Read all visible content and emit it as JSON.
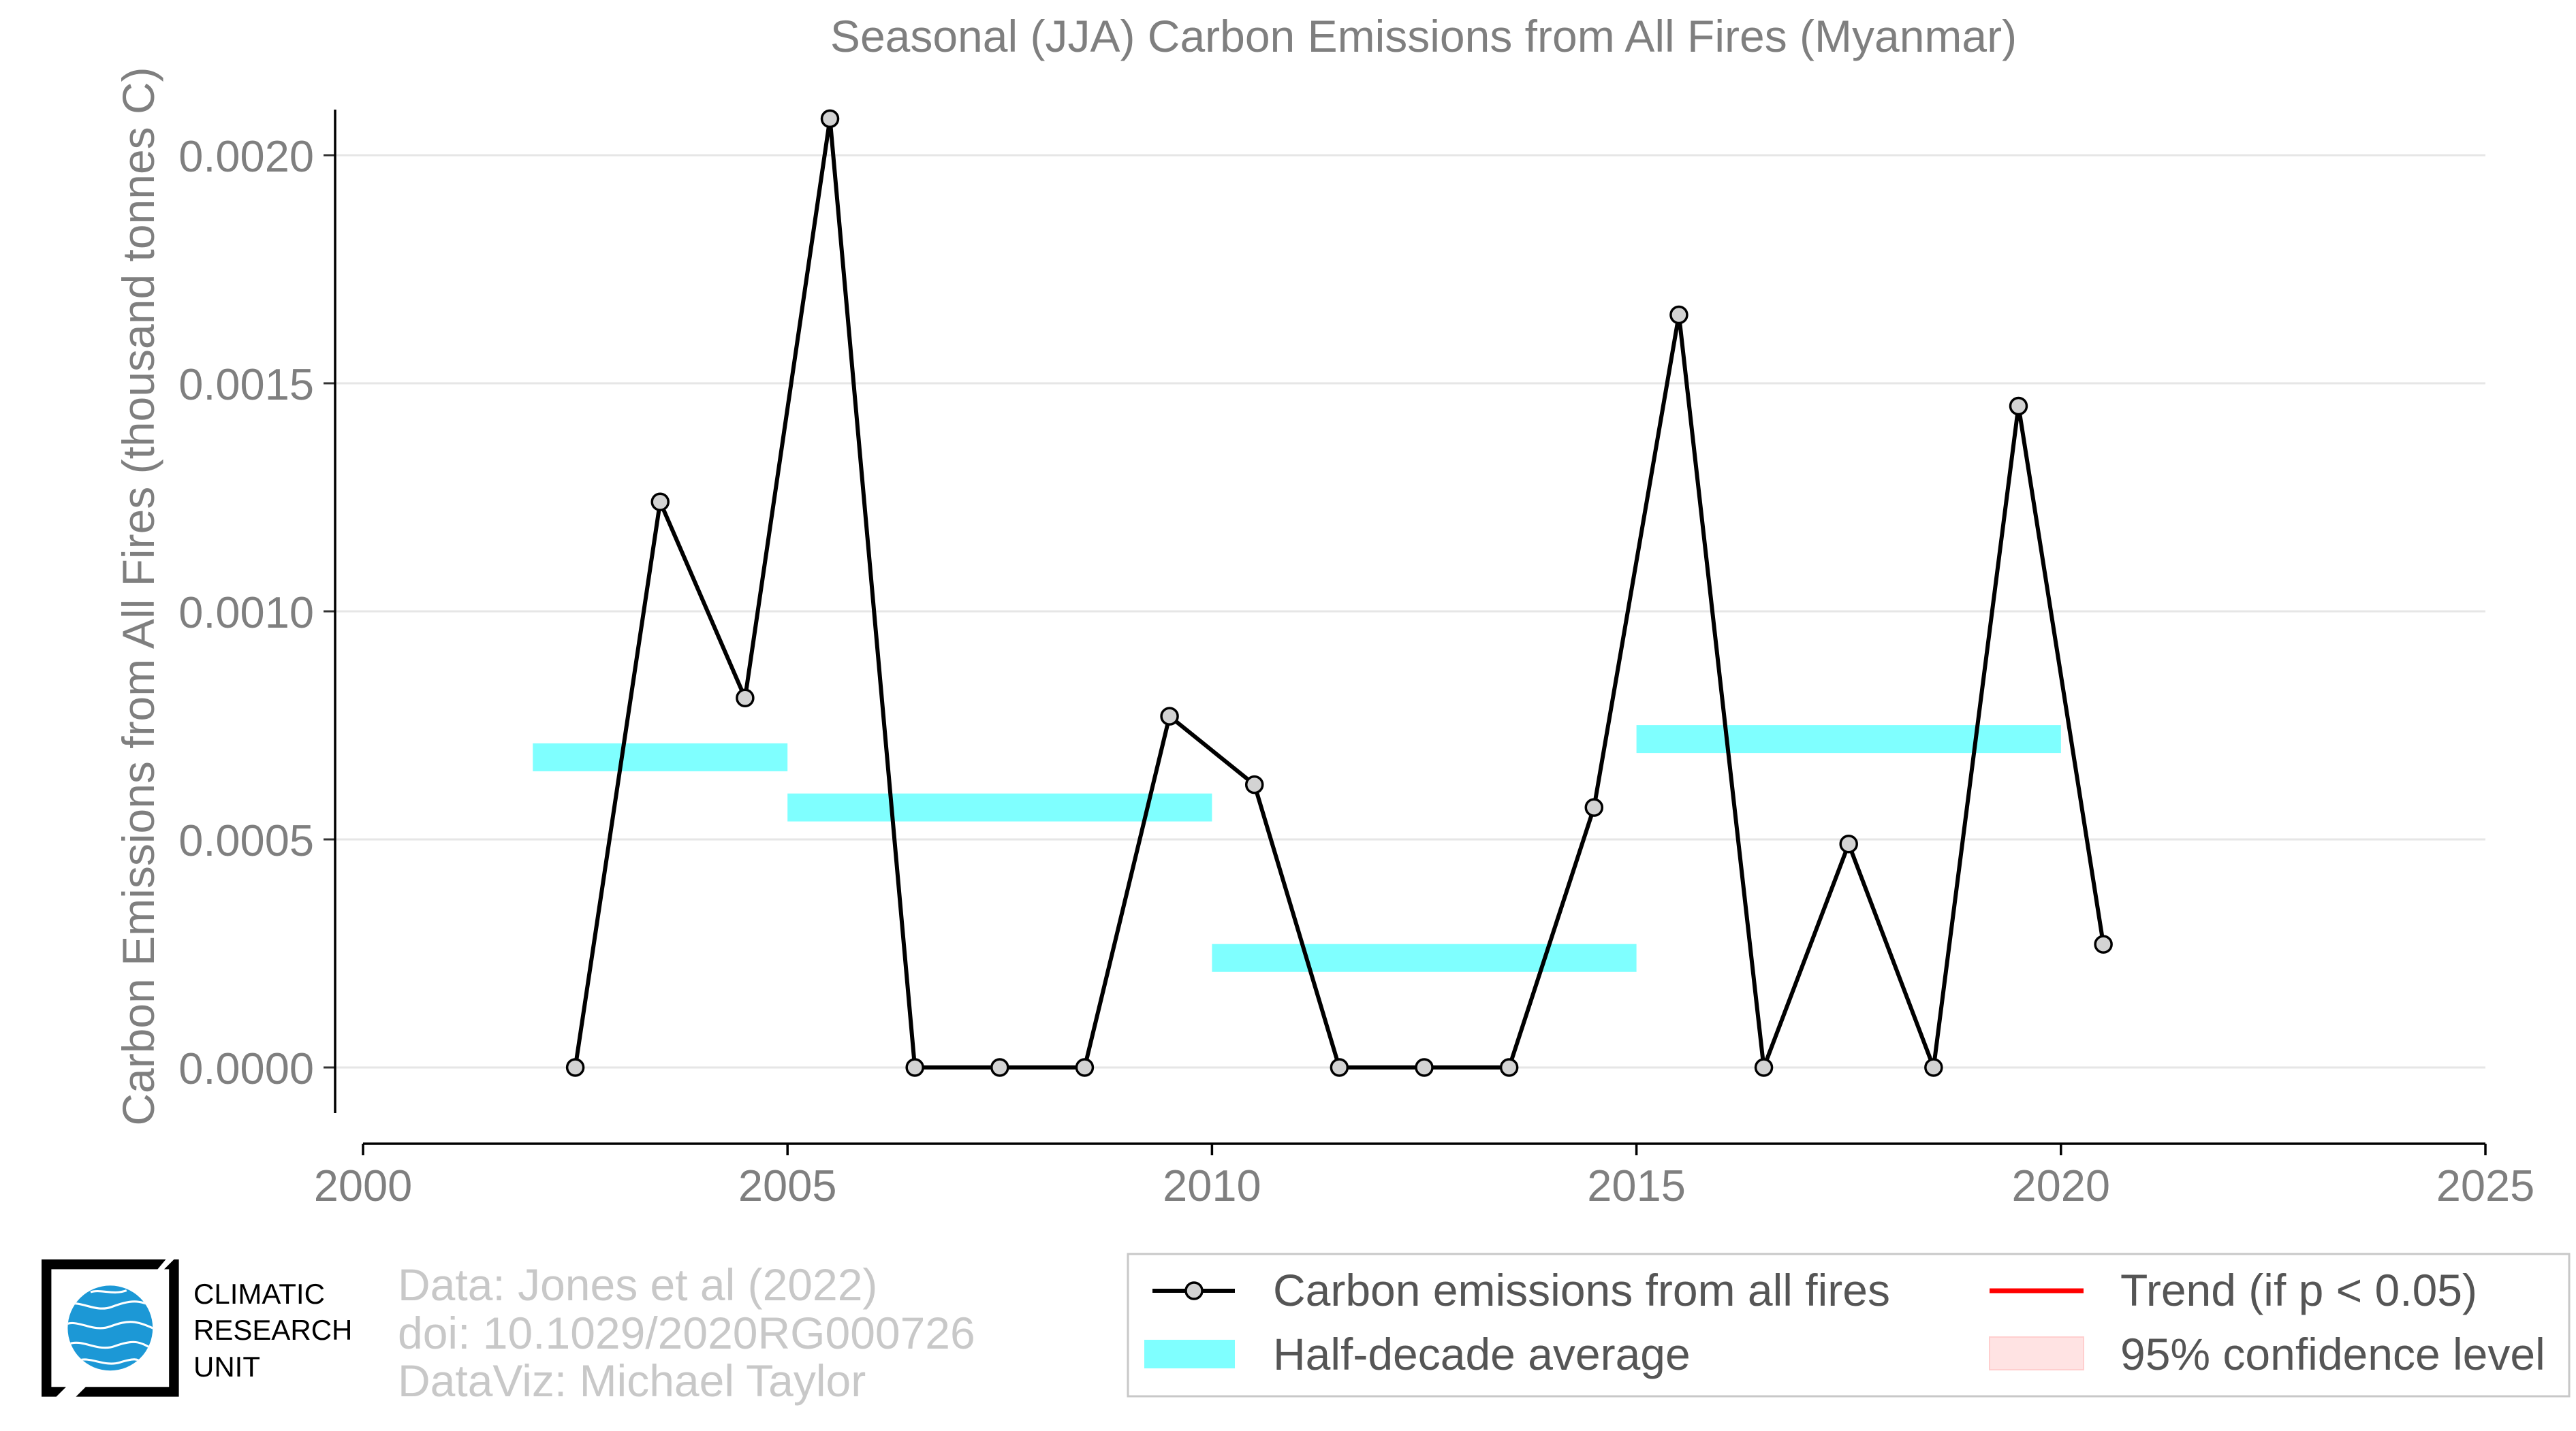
{
  "chart_data": {
    "type": "line",
    "title": "Seasonal (JJA) Carbon Emissions from All Fires (Myanmar)",
    "ylabel": "Carbon Emissions from All Fires (thousand tonnes C)",
    "xlim": [
      2000,
      2025
    ],
    "ylim": [
      -0.0001,
      0.0021
    ],
    "xtick_values": [
      2000,
      2005,
      2010,
      2015,
      2020,
      2025
    ],
    "xtick_labels": [
      "2000",
      "2005",
      "2010",
      "2015",
      "2020",
      "2025"
    ],
    "ytick_values": [
      0,
      0.0005,
      0.001,
      0.0015,
      0.002
    ],
    "ytick_labels": [
      "0.0000",
      "0.0005",
      "0.0010",
      "0.0015",
      "0.0020"
    ],
    "grid": "horizontal",
    "legend_position": "bottom-right",
    "series": [
      {
        "name": "Carbon emissions from all fires",
        "type": "line",
        "color": "#000000",
        "marker_fill": "#d3d3d3",
        "x": [
          2002.5,
          2003.5,
          2004.5,
          2005.5,
          2006.5,
          2007.5,
          2008.5,
          2009.5,
          2010.5,
          2011.5,
          2012.5,
          2013.5,
          2014.5,
          2015.5,
          2016.5,
          2017.5,
          2018.5,
          2019.5,
          2020.5
        ],
        "y": [
          0.0,
          0.00124,
          0.00081,
          0.00208,
          0.0,
          0.0,
          0.0,
          0.00077,
          0.00062,
          0.0,
          0.0,
          0.0,
          0.00057,
          0.00165,
          0.0,
          0.00049,
          0.0,
          0.00145,
          0.00027
        ]
      },
      {
        "name": "Half-decade average",
        "type": "segments",
        "color": "#7fffff",
        "segments": [
          {
            "x": [
              2002,
              2005
            ],
            "y": 0.00068
          },
          {
            "x": [
              2005,
              2010
            ],
            "y": 0.00057
          },
          {
            "x": [
              2010,
              2015
            ],
            "y": 0.00024
          },
          {
            "x": [
              2015,
              2020
            ],
            "y": 0.00072
          }
        ]
      },
      {
        "name": "Trend (if p < 0.05)",
        "type": "line",
        "color": "#ff0000",
        "x": [],
        "y": []
      },
      {
        "name": "95% confidence level",
        "type": "area",
        "color": "#ffe3e3",
        "x": [],
        "y": []
      }
    ]
  },
  "credits": [
    "Data: Jones et al (2022)",
    "doi: 10.1029/2020RG000726",
    "DataViz: Michael Taylor"
  ],
  "logo": {
    "lines": [
      "CLIMATIC",
      "RESEARCH",
      "UNIT"
    ],
    "globe_color": "#1c98d6",
    "frame_color": "#000000"
  }
}
